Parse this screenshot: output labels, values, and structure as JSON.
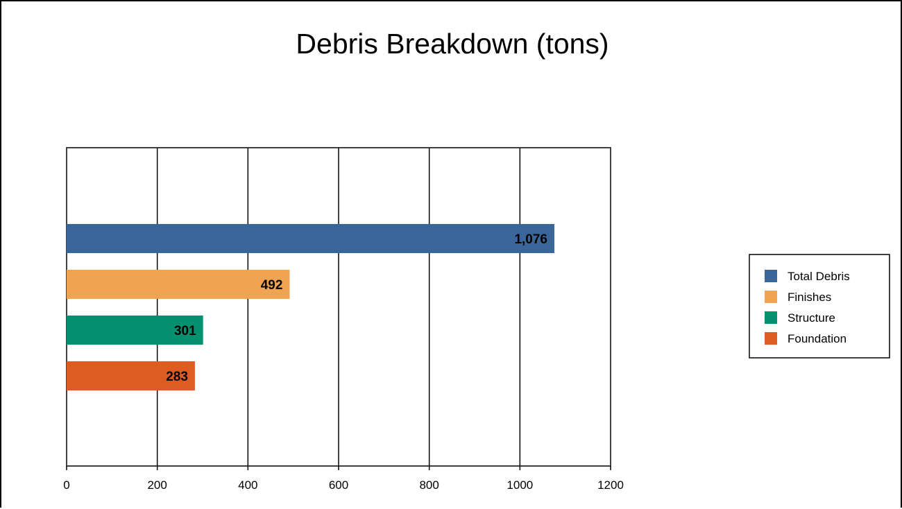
{
  "chart_data": {
    "type": "bar",
    "orientation": "horizontal",
    "title": "Debris Breakdown (tons)",
    "categories": [
      "Total Debris",
      "Finishes",
      "Structure",
      "Foundation"
    ],
    "values": [
      1076,
      492,
      301,
      283
    ],
    "value_labels": [
      "1,076",
      "492",
      "301",
      "283"
    ],
    "colors": [
      "#3b6699",
      "#f0a452",
      "#049170",
      "#de5b22"
    ],
    "xlim": [
      0,
      1200
    ],
    "x_ticks": [
      0,
      200,
      400,
      600,
      800,
      1000,
      1200
    ],
    "x_tick_labels": [
      "0",
      "200",
      "400",
      "600",
      "800",
      "1000",
      "1200"
    ],
    "xlabel": "",
    "ylabel": "",
    "grid": "vertical",
    "legend": {
      "placement": "right",
      "entries": [
        "Total Debris",
        "Finishes",
        "Structure",
        "Foundation"
      ]
    }
  }
}
